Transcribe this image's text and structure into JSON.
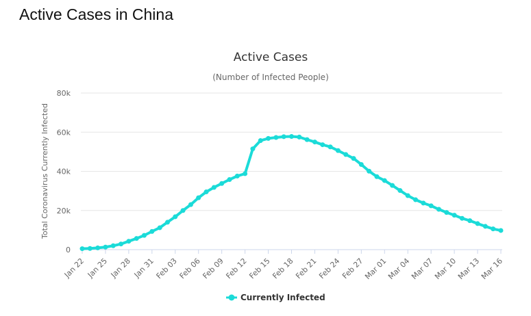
{
  "page": {
    "heading": "Active Cases in China"
  },
  "chart_data": {
    "type": "line",
    "title": "Active Cases",
    "subtitle": "(Number of Infected People)",
    "ylabel": "Total Coronavirus Currently Infected",
    "xlabel": "",
    "ylim": [
      0,
      80000
    ],
    "yticks": [
      0,
      20000,
      40000,
      60000,
      80000
    ],
    "ytick_labels": [
      "0",
      "20k",
      "40k",
      "60k",
      "80k"
    ],
    "x": [
      "Jan 22",
      "Jan 23",
      "Jan 24",
      "Jan 25",
      "Jan 26",
      "Jan 27",
      "Jan 28",
      "Jan 29",
      "Jan 30",
      "Jan 31",
      "Feb 01",
      "Feb 02",
      "Feb 03",
      "Feb 04",
      "Feb 05",
      "Feb 06",
      "Feb 07",
      "Feb 08",
      "Feb 09",
      "Feb 10",
      "Feb 11",
      "Feb 12",
      "Feb 13",
      "Feb 14",
      "Feb 15",
      "Feb 16",
      "Feb 17",
      "Feb 18",
      "Feb 19",
      "Feb 20",
      "Feb 21",
      "Feb 22",
      "Feb 23",
      "Feb 24",
      "Feb 25",
      "Feb 26",
      "Feb 27",
      "Feb 28",
      "Feb 29",
      "Mar 01",
      "Mar 02",
      "Mar 03",
      "Mar 04",
      "Mar 05",
      "Mar 06",
      "Mar 07",
      "Mar 08",
      "Mar 09",
      "Mar 10",
      "Mar 11",
      "Mar 12",
      "Mar 13",
      "Mar 14",
      "Mar 15",
      "Mar 16"
    ],
    "x_tick_labels": [
      "Jan 22",
      "Jan 25",
      "Jan 28",
      "Jan 31",
      "Feb 03",
      "Feb 06",
      "Feb 09",
      "Feb 12",
      "Feb 15",
      "Feb 18",
      "Feb 21",
      "Feb 24",
      "Feb 27",
      "Mar 01",
      "Mar 04",
      "Mar 07",
      "Mar 10",
      "Mar 13",
      "Mar 16"
    ],
    "series": [
      {
        "name": "Currently Infected",
        "color": "#1bdbd8",
        "values": [
          500,
          600,
          900,
          1300,
          2000,
          2900,
          4300,
          5700,
          7300,
          9300,
          11200,
          14000,
          16800,
          20000,
          23000,
          26500,
          29500,
          31800,
          33800,
          35800,
          37600,
          38800,
          51500,
          55700,
          56800,
          57300,
          57700,
          57800,
          57500,
          56200,
          55000,
          53600,
          52500,
          50600,
          48600,
          46600,
          43500,
          40100,
          37300,
          35300,
          32800,
          30200,
          27600,
          25500,
          23800,
          22400,
          20600,
          19000,
          17600,
          16000,
          14800,
          13300,
          11900,
          10600,
          9800
        ]
      }
    ],
    "grid": true,
    "legend": "bottom-center"
  }
}
